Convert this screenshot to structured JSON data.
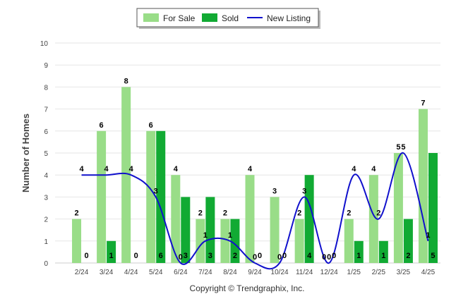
{
  "chart_data": {
    "type": "bar",
    "categories": [
      "2/24",
      "3/24",
      "4/24",
      "5/24",
      "6/24",
      "7/24",
      "8/24",
      "9/24",
      "10/24",
      "11/24",
      "12/24",
      "1/25",
      "2/25",
      "3/25",
      "4/25"
    ],
    "series": [
      {
        "name": "For Sale",
        "type": "bar",
        "color": "#99dd88",
        "values": [
          2,
          6,
          8,
          6,
          4,
          2,
          2,
          4,
          3,
          2,
          0,
          2,
          4,
          5,
          7
        ]
      },
      {
        "name": "Sold",
        "type": "bar",
        "color": "#11aa33",
        "values": [
          0,
          1,
          0,
          6,
          3,
          3,
          2,
          0,
          0,
          4,
          0,
          1,
          1,
          2,
          5
        ]
      },
      {
        "name": "New Listing",
        "type": "line",
        "color": "#1010cc",
        "values": [
          4,
          4,
          4,
          3,
          0,
          1,
          1,
          0,
          0,
          3,
          0,
          4,
          2,
          5,
          1
        ]
      }
    ],
    "ylabel": "Number of Homes",
    "ylim": [
      0,
      10
    ],
    "yticks": [
      0,
      1,
      2,
      3,
      4,
      5,
      6,
      7,
      8,
      9,
      10
    ],
    "legend_position": "top-center",
    "grid": true
  },
  "footer": {
    "credit": "Copyright © Trendgraphix, Inc."
  }
}
